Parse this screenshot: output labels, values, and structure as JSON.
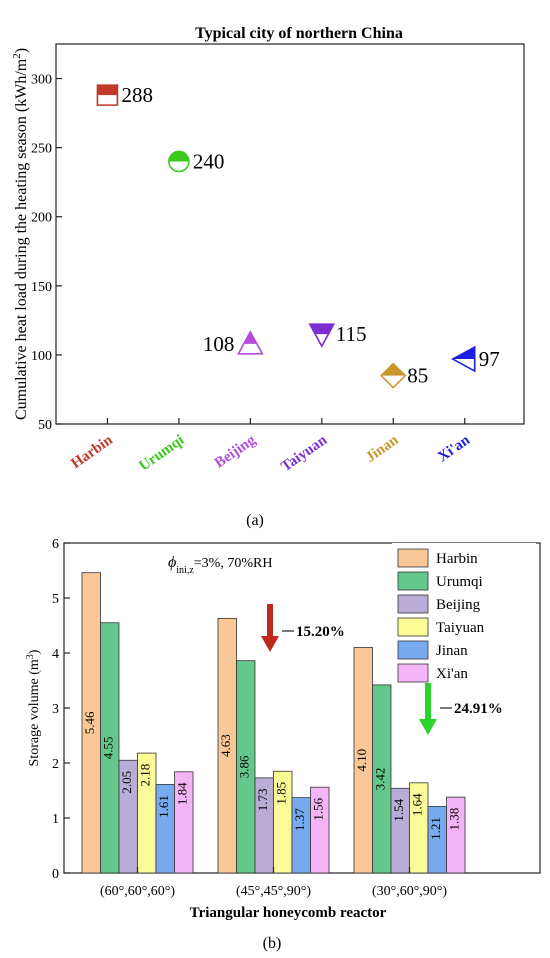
{
  "chart_data": [
    {
      "type": "scatter",
      "title": "Typical city of northern China",
      "ylabel": "Cumulative heat load during the heating season (kWh/m²)",
      "ylabel_parts": [
        "Cumulative heat load during the heating season (kWh/m",
        "2",
        ")"
      ],
      "ylim": [
        50,
        325
      ],
      "yticks": [
        50,
        100,
        150,
        200,
        250,
        300
      ],
      "grid": false,
      "categories": [
        "Harbin",
        "Urumqi",
        "Beijing",
        "Taiyuan",
        "Jinan",
        "Xi'an"
      ],
      "values": [
        288,
        240,
        108,
        115,
        85,
        97
      ],
      "data_labels": [
        "288",
        "240",
        "108",
        "115",
        "85",
        "97"
      ],
      "colors": [
        "#c0392b",
        "#3cc81e",
        "#b44bdc",
        "#7b2fd0",
        "#c8962d",
        "#1e1ee0"
      ],
      "markers": [
        "half-filled-square",
        "half-filled-circle",
        "half-filled-triangle-up",
        "half-filled-triangle-down",
        "half-filled-diamond",
        "half-filled-triangle-left"
      ],
      "caption": "(a)"
    },
    {
      "type": "bar",
      "annotation_parts": [
        "ϕ",
        "ini,z",
        "=3%, 70%RH"
      ],
      "ylabel": "Storage volume (m³)",
      "ylabel_parts": [
        "Storage volume (m",
        "3",
        ")"
      ],
      "xlabel": "Triangular honeycomb reactor",
      "ylim": [
        0,
        6
      ],
      "yticks": [
        0,
        1,
        2,
        3,
        4,
        5,
        6
      ],
      "grid": false,
      "legend_position": "top-right",
      "categories": [
        "(60°,60°,60°)",
        "(45°,45°,90°)",
        "(30°,60°,90°)"
      ],
      "series": [
        {
          "name": "Harbin",
          "values": [
            5.46,
            4.63,
            4.1
          ],
          "color": "#fac898"
        },
        {
          "name": "Urumqi",
          "values": [
            4.55,
            3.86,
            3.42
          ],
          "color": "#64c88c"
        },
        {
          "name": "Beijing",
          "values": [
            2.05,
            1.73,
            1.54
          ],
          "color": "#b9acd6"
        },
        {
          "name": "Taiyuan",
          "values": [
            2.18,
            1.85,
            1.64
          ],
          "color": "#fafa96"
        },
        {
          "name": "Jinan",
          "values": [
            1.61,
            1.37,
            1.21
          ],
          "color": "#78aaf0"
        },
        {
          "name": "Xi'an",
          "values": [
            1.84,
            1.56,
            1.38
          ],
          "color": "#f5b4f5"
        }
      ],
      "value_labels": [
        [
          "5.46",
          "4.55",
          "2.05",
          "2.18",
          "1.61",
          "1.84"
        ],
        [
          "4.63",
          "3.86",
          "1.73",
          "1.85",
          "1.37",
          "1.56"
        ],
        [
          "4.10",
          "3.42",
          "1.54",
          "1.64",
          "1.21",
          "1.38"
        ]
      ],
      "annotations": [
        {
          "text": "15.20%",
          "color": "#c0281e",
          "arrow": "down"
        },
        {
          "text": "24.91%",
          "color": "#2ad42a",
          "arrow": "down"
        }
      ],
      "caption": "(b)"
    }
  ]
}
